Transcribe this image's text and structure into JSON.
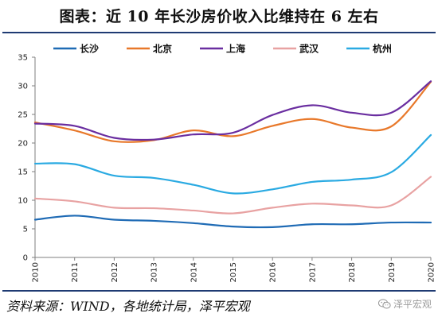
{
  "title": "图表：近 10 年长沙房价收入比维持在 6 左右",
  "footer": "资料来源：WIND，各地统计局，泽平宏观",
  "watermark": {
    "text": "泽平宏观",
    "icon": "wechat-icon"
  },
  "chart_data": {
    "type": "line",
    "x": [
      "2010",
      "2011",
      "2012",
      "2013",
      "2014",
      "2015",
      "2016",
      "2017",
      "2018",
      "2019",
      "2020"
    ],
    "ylim": [
      0,
      35
    ],
    "yticks": [
      0,
      5,
      10,
      15,
      20,
      25,
      30,
      35
    ],
    "grid": false,
    "legend_position": "top",
    "series": [
      {
        "name": "长沙",
        "color": "#1f6bb5",
        "values": [
          6.6,
          7.3,
          6.6,
          6.4,
          6.0,
          5.4,
          5.3,
          5.8,
          5.8,
          6.1,
          6.1
        ]
      },
      {
        "name": "北京",
        "color": "#e8782a",
        "values": [
          23.6,
          22.2,
          20.3,
          20.5,
          22.2,
          21.2,
          23.0,
          24.2,
          22.7,
          22.9,
          30.7
        ]
      },
      {
        "name": "上海",
        "color": "#6a2ea0",
        "values": [
          23.4,
          23.0,
          20.9,
          20.6,
          21.5,
          21.8,
          24.9,
          26.6,
          25.3,
          25.3,
          30.8
        ]
      },
      {
        "name": "武汉",
        "color": "#e8a2a2",
        "values": [
          10.3,
          9.8,
          8.7,
          8.6,
          8.2,
          7.7,
          8.7,
          9.4,
          9.1,
          9.1,
          14.1
        ]
      },
      {
        "name": "杭州",
        "color": "#2aaae2",
        "values": [
          16.4,
          16.3,
          14.3,
          13.9,
          12.7,
          11.2,
          11.9,
          13.2,
          13.6,
          14.9,
          21.4
        ]
      }
    ]
  }
}
